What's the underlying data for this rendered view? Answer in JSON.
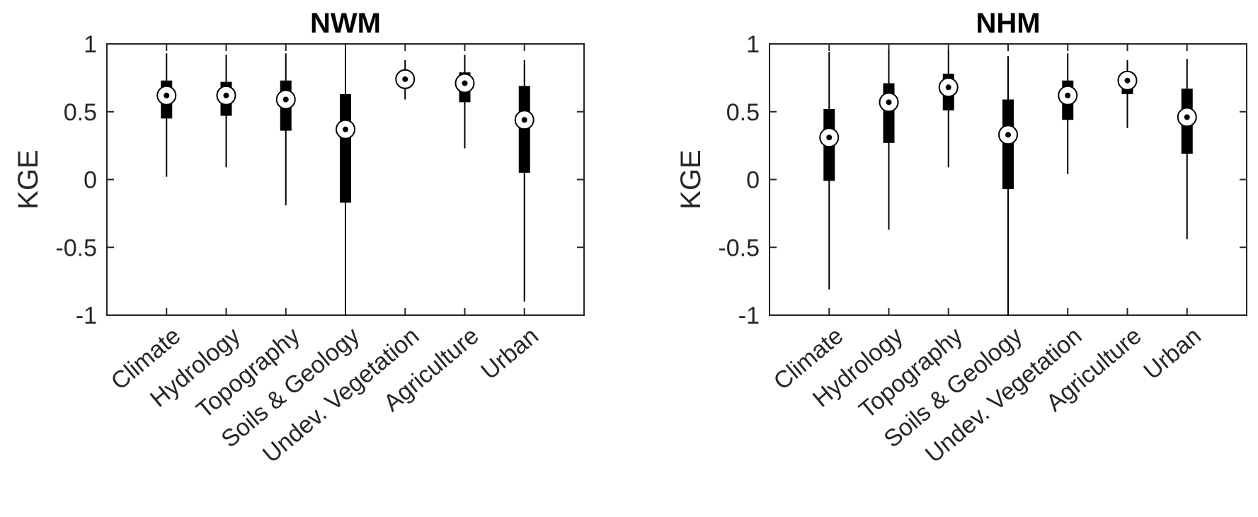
{
  "chart_data": [
    {
      "type": "box",
      "title": "NWM",
      "xlabel": "",
      "ylabel": "KGE",
      "ylim": [
        -1,
        1
      ],
      "yticks": [
        "-1",
        "-0.5",
        "0",
        "0.5",
        "1"
      ],
      "grid": false,
      "categories": [
        "Climate",
        "Hydrology",
        "Topography",
        "Soils & Geology",
        "Undev. Vegetation",
        "Agriculture",
        "Urban"
      ],
      "boxes": [
        {
          "whisker_low": 0.02,
          "q1": 0.45,
          "median": 0.62,
          "q3": 0.73,
          "whisker_high": 0.93
        },
        {
          "whisker_low": 0.09,
          "q1": 0.47,
          "median": 0.62,
          "q3": 0.72,
          "whisker_high": 0.92
        },
        {
          "whisker_low": -0.19,
          "q1": 0.36,
          "median": 0.59,
          "q3": 0.73,
          "whisker_high": 0.93
        },
        {
          "whisker_low": -1.0,
          "q1": -0.17,
          "median": 0.37,
          "q3": 0.63,
          "whisker_high": 0.95
        },
        {
          "whisker_low": 0.59,
          "q1": 0.69,
          "median": 0.74,
          "q3": 0.79,
          "whisker_high": 0.88
        },
        {
          "whisker_low": 0.23,
          "q1": 0.57,
          "median": 0.71,
          "q3": 0.79,
          "whisker_high": 0.92
        },
        {
          "whisker_low": -0.9,
          "q1": 0.05,
          "median": 0.44,
          "q3": 0.69,
          "whisker_high": 0.88
        }
      ]
    },
    {
      "type": "box",
      "title": "NHM",
      "xlabel": "",
      "ylabel": "KGE",
      "ylim": [
        -1,
        1
      ],
      "yticks": [
        "-1",
        "-0.5",
        "0",
        "0.5",
        "1"
      ],
      "grid": false,
      "categories": [
        "Climate",
        "Hydrology",
        "Topography",
        "Soils & Geology",
        "Undev. Vegetation",
        "Agriculture",
        "Urban"
      ],
      "boxes": [
        {
          "whisker_low": -0.81,
          "q1": -0.01,
          "median": 0.31,
          "q3": 0.52,
          "whisker_high": 0.94
        },
        {
          "whisker_low": -0.37,
          "q1": 0.27,
          "median": 0.57,
          "q3": 0.71,
          "whisker_high": 0.96
        },
        {
          "whisker_low": 0.09,
          "q1": 0.51,
          "median": 0.68,
          "q3": 0.78,
          "whisker_high": 0.95
        },
        {
          "whisker_low": -1.0,
          "q1": -0.07,
          "median": 0.33,
          "q3": 0.59,
          "whisker_high": 0.91
        },
        {
          "whisker_low": 0.04,
          "q1": 0.44,
          "median": 0.62,
          "q3": 0.73,
          "whisker_high": 0.93
        },
        {
          "whisker_low": 0.38,
          "q1": 0.63,
          "median": 0.73,
          "q3": 0.79,
          "whisker_high": 0.88
        },
        {
          "whisker_low": -0.44,
          "q1": 0.19,
          "median": 0.46,
          "q3": 0.67,
          "whisker_high": 0.89
        }
      ]
    }
  ]
}
